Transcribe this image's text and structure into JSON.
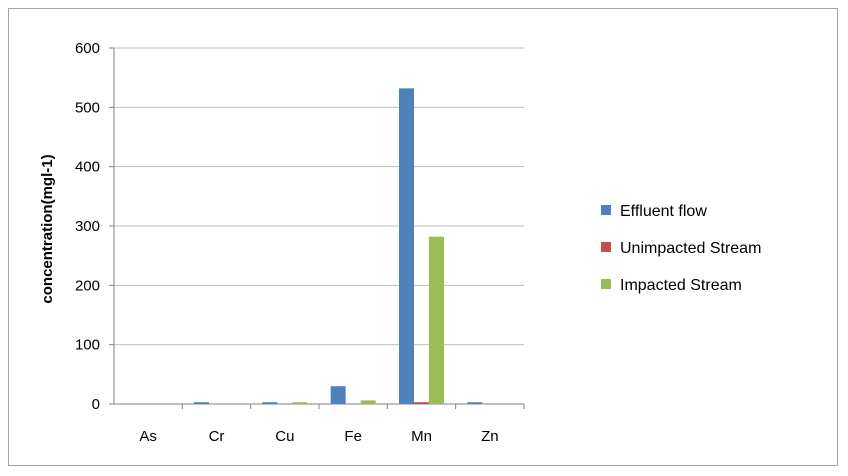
{
  "chart_data": {
    "type": "bar",
    "ylabel": "concentration(mgl-1)",
    "xlabel": "",
    "title": "",
    "ylim": [
      0,
      600
    ],
    "yticks": [
      0,
      100,
      200,
      300,
      400,
      500,
      600
    ],
    "grid": "horizontal",
    "legend_position": "right",
    "categories": [
      "As",
      "Cr",
      "Cu",
      "Fe",
      "Mn",
      "Zn"
    ],
    "series": [
      {
        "name": "Effluent flow",
        "color": "#4F81BD",
        "values": [
          0.5,
          3,
          3,
          30,
          532,
          3
        ]
      },
      {
        "name": "Unimpacted Stream",
        "color": "#C0504D",
        "values": [
          0,
          0,
          0,
          0,
          3,
          0
        ]
      },
      {
        "name": "Impacted Stream",
        "color": "#9BBB59",
        "values": [
          0,
          0,
          3,
          6,
          282,
          0
        ]
      }
    ]
  }
}
